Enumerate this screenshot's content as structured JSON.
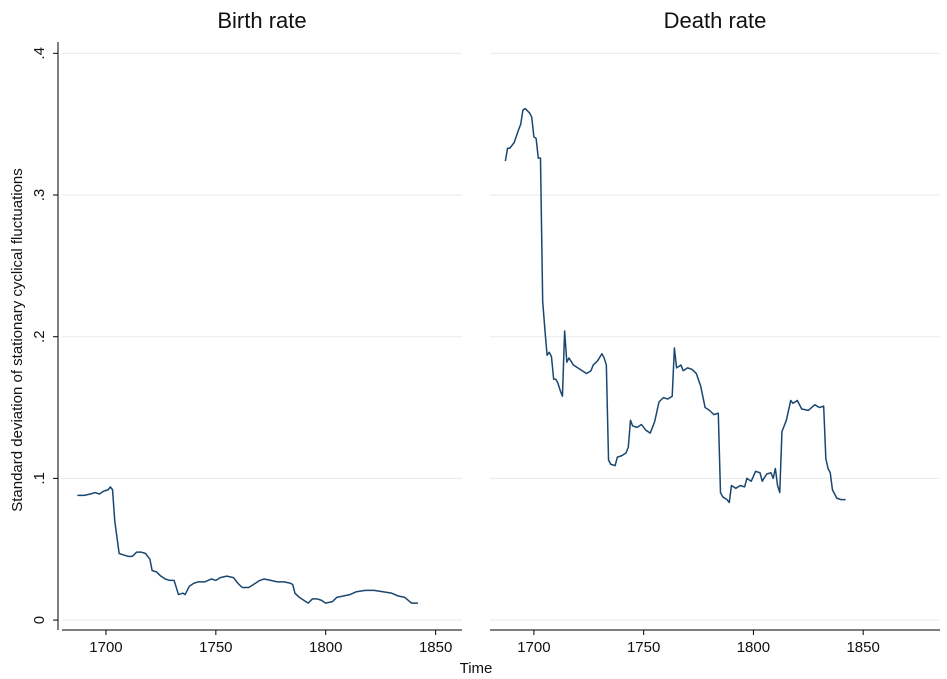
{
  "ylabel": "Standard deviation of stationary cyclical fluctuations",
  "xlabel": "Time",
  "chart_data": [
    {
      "type": "line",
      "title": "Birth rate",
      "color": "#1a476f",
      "grid": true,
      "xlim": [
        1680,
        1862
      ],
      "ylim": [
        -0.007,
        0.408
      ],
      "xticks": [
        1700,
        1750,
        1800,
        1850
      ],
      "yticks": [
        0,
        {
          "value": 0.1,
          "label": ".1"
        },
        {
          "value": 0.2,
          "label": ".2"
        },
        {
          "value": 0.3,
          "label": ".3"
        },
        {
          "value": 0.4,
          "label": ".4"
        }
      ],
      "x": [
        1687,
        1690,
        1693,
        1695,
        1697,
        1699,
        1701,
        1702,
        1703,
        1704,
        1706,
        1708,
        1710,
        1712,
        1714,
        1716,
        1718,
        1720,
        1721,
        1723,
        1725,
        1727,
        1729,
        1731,
        1733,
        1735,
        1736,
        1738,
        1740,
        1742,
        1745,
        1748,
        1750,
        1752,
        1755,
        1758,
        1760,
        1762,
        1765,
        1768,
        1770,
        1772,
        1775,
        1778,
        1781,
        1784,
        1785,
        1786,
        1788,
        1790,
        1792,
        1794,
        1796,
        1798,
        1800,
        1803,
        1805,
        1808,
        1811,
        1814,
        1818,
        1822,
        1826,
        1830,
        1833,
        1836,
        1839,
        1842
      ],
      "values": [
        0.088,
        0.088,
        0.089,
        0.09,
        0.089,
        0.091,
        0.092,
        0.094,
        0.092,
        0.07,
        0.047,
        0.046,
        0.045,
        0.045,
        0.048,
        0.048,
        0.047,
        0.043,
        0.035,
        0.034,
        0.031,
        0.029,
        0.028,
        0.028,
        0.018,
        0.019,
        0.018,
        0.024,
        0.026,
        0.027,
        0.027,
        0.029,
        0.028,
        0.03,
        0.031,
        0.03,
        0.026,
        0.023,
        0.023,
        0.026,
        0.028,
        0.029,
        0.028,
        0.027,
        0.027,
        0.026,
        0.025,
        0.019,
        0.016,
        0.014,
        0.012,
        0.015,
        0.015,
        0.014,
        0.012,
        0.013,
        0.016,
        0.017,
        0.018,
        0.02,
        0.021,
        0.021,
        0.02,
        0.019,
        0.017,
        0.016,
        0.012,
        0.012
      ]
    },
    {
      "type": "line",
      "title": "Death rate",
      "color": "#1a476f",
      "grid": true,
      "xlim": [
        1680,
        1885
      ],
      "ylim": [
        -0.007,
        0.408
      ],
      "xticks": [
        1700,
        1750,
        1800,
        1850
      ],
      "yticks": [
        0,
        0.1,
        0.2,
        0.3,
        0.4
      ],
      "x": [
        1687,
        1688,
        1689,
        1691,
        1693,
        1694,
        1695,
        1696,
        1698,
        1699,
        1700,
        1701,
        1702,
        1703,
        1704,
        1705,
        1706,
        1707,
        1708,
        1709,
        1710,
        1711,
        1712,
        1713,
        1714,
        1715,
        1716,
        1718,
        1720,
        1722,
        1724,
        1726,
        1727,
        1729,
        1731,
        1732,
        1733,
        1734,
        1735,
        1737,
        1738,
        1740,
        1742,
        1743,
        1744,
        1745,
        1747,
        1749,
        1751,
        1753,
        1755,
        1757,
        1759,
        1761,
        1763,
        1764,
        1765,
        1767,
        1768,
        1770,
        1772,
        1774,
        1776,
        1778,
        1780,
        1782,
        1784,
        1785,
        1786,
        1788,
        1789,
        1790,
        1792,
        1794,
        1796,
        1797,
        1799,
        1801,
        1803,
        1804,
        1806,
        1808,
        1809,
        1810,
        1811,
        1812,
        1813,
        1815,
        1817,
        1818,
        1820,
        1822,
        1825,
        1828,
        1830,
        1832,
        1833,
        1834,
        1835,
        1836,
        1838,
        1840,
        1842
      ],
      "values": [
        0.324,
        0.333,
        0.333,
        0.337,
        0.346,
        0.35,
        0.36,
        0.361,
        0.358,
        0.355,
        0.341,
        0.34,
        0.326,
        0.326,
        0.225,
        0.205,
        0.187,
        0.189,
        0.186,
        0.17,
        0.17,
        0.167,
        0.162,
        0.158,
        0.204,
        0.182,
        0.185,
        0.18,
        0.178,
        0.176,
        0.174,
        0.176,
        0.18,
        0.183,
        0.188,
        0.185,
        0.18,
        0.113,
        0.11,
        0.109,
        0.115,
        0.116,
        0.118,
        0.122,
        0.141,
        0.137,
        0.136,
        0.138,
        0.134,
        0.132,
        0.14,
        0.154,
        0.157,
        0.156,
        0.158,
        0.192,
        0.178,
        0.18,
        0.176,
        0.178,
        0.177,
        0.174,
        0.165,
        0.15,
        0.148,
        0.145,
        0.146,
        0.09,
        0.087,
        0.085,
        0.083,
        0.095,
        0.093,
        0.095,
        0.094,
        0.1,
        0.098,
        0.105,
        0.104,
        0.098,
        0.103,
        0.104,
        0.1,
        0.107,
        0.095,
        0.09,
        0.133,
        0.141,
        0.155,
        0.153,
        0.155,
        0.149,
        0.148,
        0.152,
        0.15,
        0.151,
        0.114,
        0.107,
        0.104,
        0.092,
        0.086,
        0.085,
        0.085
      ]
    }
  ]
}
